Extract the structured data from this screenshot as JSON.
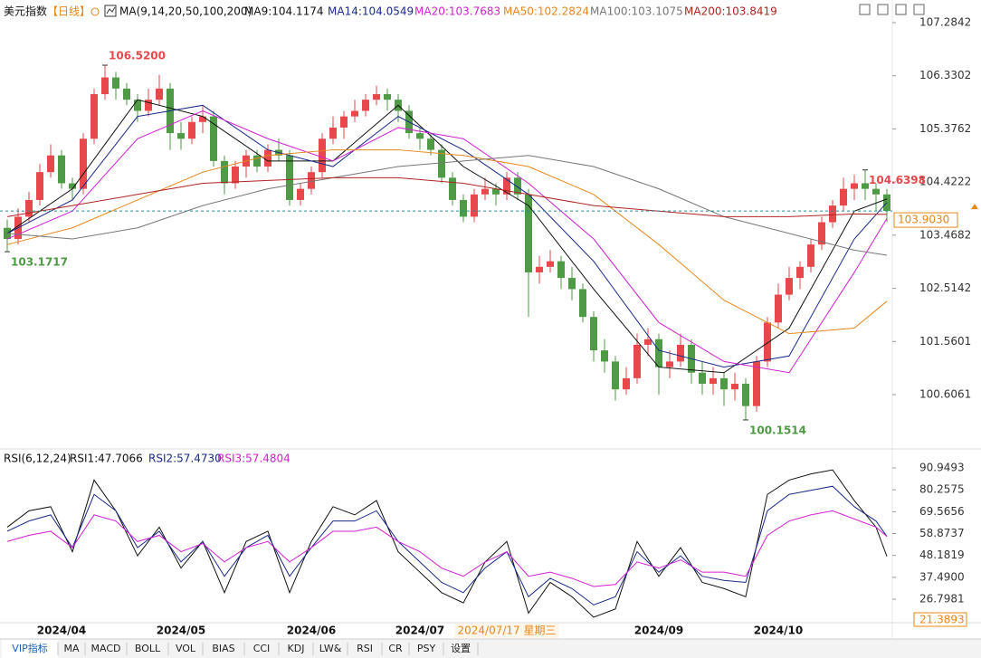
{
  "header": {
    "title": "美元指数",
    "period": "【日线】",
    "indicator": "MA(9,14,20,50,100,200)"
  },
  "chart_data": [
    {
      "type": "candlestick",
      "up_color": "#e8474b",
      "down_color": "#4e9a45",
      "ylim": [
        99.647,
        107.609
      ],
      "yticks": [
        107.2842,
        106.3302,
        105.3762,
        104.4222,
        103.4682,
        102.5142,
        101.5601,
        100.6061
      ],
      "candles": [
        [
          103.6,
          103.75,
          103.17,
          103.4
        ],
        [
          103.4,
          103.95,
          103.3,
          103.8
        ],
        [
          103.8,
          104.25,
          103.7,
          104.1
        ],
        [
          104.1,
          104.75,
          104.0,
          104.6
        ],
        [
          104.6,
          105.1,
          104.5,
          104.9
        ],
        [
          104.9,
          105.0,
          104.3,
          104.4
        ],
        [
          104.4,
          104.5,
          104.1,
          104.3
        ],
        [
          104.3,
          105.3,
          104.2,
          105.2
        ],
        [
          105.2,
          106.1,
          105.1,
          106.0
        ],
        [
          106.0,
          106.52,
          105.9,
          106.3
        ],
        [
          106.3,
          106.4,
          105.9,
          106.1
        ],
        [
          106.1,
          106.2,
          105.8,
          105.9
        ],
        [
          105.9,
          106.0,
          105.5,
          105.7
        ],
        [
          105.7,
          106.1,
          105.6,
          105.9
        ],
        [
          105.9,
          106.35,
          105.8,
          106.1
        ],
        [
          106.1,
          106.2,
          105.0,
          105.3
        ],
        [
          105.3,
          105.5,
          105.0,
          105.2
        ],
        [
          105.2,
          105.6,
          105.1,
          105.5
        ],
        [
          105.5,
          105.8,
          105.3,
          105.6
        ],
        [
          105.6,
          105.7,
          104.7,
          104.8
        ],
        [
          104.8,
          104.9,
          104.2,
          104.4
        ],
        [
          104.4,
          104.8,
          104.3,
          104.7
        ],
        [
          104.7,
          105.0,
          104.5,
          104.9
        ],
        [
          104.9,
          105.0,
          104.6,
          104.7
        ],
        [
          104.7,
          105.1,
          104.6,
          105.0
        ],
        [
          105.0,
          105.2,
          104.8,
          104.9
        ],
        [
          104.9,
          105.0,
          104.0,
          104.1
        ],
        [
          104.1,
          104.4,
          104.0,
          104.3
        ],
        [
          104.3,
          104.7,
          104.2,
          104.6
        ],
        [
          104.6,
          105.3,
          104.5,
          105.2
        ],
        [
          105.2,
          105.6,
          105.1,
          105.4
        ],
        [
          105.4,
          105.7,
          105.2,
          105.6
        ],
        [
          105.6,
          105.9,
          105.5,
          105.7
        ],
        [
          105.7,
          106.0,
          105.6,
          105.9
        ],
        [
          105.9,
          106.15,
          105.8,
          106.0
        ],
        [
          106.0,
          106.1,
          105.7,
          105.9
        ],
        [
          105.9,
          106.0,
          105.5,
          105.7
        ],
        [
          105.7,
          105.8,
          105.2,
          105.3
        ],
        [
          105.3,
          105.4,
          105.0,
          105.2
        ],
        [
          105.2,
          105.3,
          104.9,
          105.0
        ],
        [
          105.0,
          105.1,
          104.4,
          104.5
        ],
        [
          104.5,
          104.6,
          104.0,
          104.1
        ],
        [
          104.1,
          104.2,
          103.7,
          103.8
        ],
        [
          103.8,
          104.3,
          103.7,
          104.2
        ],
        [
          104.2,
          104.5,
          104.1,
          104.3
        ],
        [
          104.3,
          104.4,
          104.0,
          104.2
        ],
        [
          104.2,
          104.6,
          104.1,
          104.5
        ],
        [
          104.5,
          104.6,
          104.1,
          104.2
        ],
        [
          104.2,
          104.3,
          102.0,
          102.8
        ],
        [
          102.8,
          103.1,
          102.6,
          102.9
        ],
        [
          102.9,
          103.2,
          102.8,
          103.0
        ],
        [
          103.0,
          103.1,
          102.5,
          102.7
        ],
        [
          102.7,
          102.9,
          102.3,
          102.5
        ],
        [
          102.5,
          102.6,
          101.9,
          102.0
        ],
        [
          102.0,
          102.1,
          101.2,
          101.4
        ],
        [
          101.4,
          101.6,
          101.0,
          101.2
        ],
        [
          101.2,
          101.3,
          100.5,
          100.7
        ],
        [
          100.7,
          101.1,
          100.6,
          100.9
        ],
        [
          100.9,
          101.7,
          100.8,
          101.5
        ],
        [
          101.5,
          101.8,
          101.3,
          101.6
        ],
        [
          101.6,
          101.7,
          100.6,
          101.1
        ],
        [
          101.1,
          101.4,
          100.9,
          101.2
        ],
        [
          101.2,
          101.7,
          101.1,
          101.5
        ],
        [
          101.5,
          101.6,
          100.8,
          101.0
        ],
        [
          101.0,
          101.2,
          100.6,
          100.8
        ],
        [
          100.8,
          101.1,
          100.6,
          100.9
        ],
        [
          100.9,
          101.0,
          100.4,
          100.7
        ],
        [
          100.7,
          101.0,
          100.5,
          100.8
        ],
        [
          100.8,
          100.9,
          100.15,
          100.4
        ],
        [
          100.4,
          101.3,
          100.3,
          101.2
        ],
        [
          101.2,
          102.0,
          101.1,
          101.9
        ],
        [
          101.9,
          102.6,
          101.8,
          102.4
        ],
        [
          102.4,
          102.9,
          102.3,
          102.7
        ],
        [
          102.7,
          103.0,
          102.5,
          102.9
        ],
        [
          102.9,
          103.4,
          102.8,
          103.3
        ],
        [
          103.3,
          103.8,
          103.2,
          103.7
        ],
        [
          103.7,
          104.1,
          103.6,
          104.0
        ],
        [
          104.0,
          104.5,
          103.9,
          104.3
        ],
        [
          104.3,
          104.55,
          104.1,
          104.4
        ],
        [
          104.4,
          104.64,
          104.1,
          104.3
        ],
        [
          104.3,
          104.4,
          103.9,
          104.2
        ],
        [
          104.2,
          104.3,
          103.7,
          103.903
        ]
      ],
      "last_price_label": "103.9030",
      "annotations": [
        {
          "index": 9,
          "value": 106.52,
          "label": "106.5200",
          "color": "#e8474b"
        },
        {
          "index": 0,
          "value": 103.1717,
          "label": "103.1717",
          "color": "#4e9a45"
        },
        {
          "index": 68,
          "value": 100.1514,
          "label": "100.1514",
          "color": "#4e9a45"
        },
        {
          "index": 79,
          "value": 104.6398,
          "label": "104.6398",
          "color": "#e8474b"
        }
      ],
      "ma_x": [
        0,
        6,
        12,
        18,
        24,
        30,
        36,
        42,
        48,
        54,
        60,
        66,
        72,
        78,
        81
      ],
      "series": [
        {
          "name": "MA9:104.1174",
          "color": "#111111",
          "values": [
            103.5,
            104.3,
            105.9,
            105.6,
            104.8,
            104.8,
            105.8,
            104.7,
            104.0,
            102.5,
            101.1,
            101.0,
            101.8,
            103.9,
            104.1174
          ]
        },
        {
          "name": "MA14:104.0549",
          "color": "#1a2a8a",
          "values": [
            103.5,
            104.1,
            105.6,
            105.8,
            105.0,
            104.7,
            105.6,
            105.0,
            104.2,
            103.0,
            101.4,
            101.1,
            101.3,
            103.4,
            104.0549
          ]
        },
        {
          "name": "MA20:103.7683",
          "color": "#d21fd2",
          "values": [
            103.4,
            103.9,
            105.2,
            105.7,
            105.2,
            104.8,
            105.4,
            105.2,
            104.4,
            103.4,
            101.9,
            101.2,
            101.0,
            102.8,
            103.7683
          ]
        },
        {
          "name": "MA50:102.2824",
          "color": "#e8861a",
          "values": [
            103.3,
            103.6,
            104.1,
            104.6,
            104.9,
            105.0,
            105.0,
            104.9,
            104.7,
            104.2,
            103.3,
            102.3,
            101.7,
            101.8,
            102.2824
          ]
        },
        {
          "name": "MA100:103.1075",
          "color": "#777777",
          "values": [
            103.5,
            103.4,
            103.6,
            104.0,
            104.3,
            104.5,
            104.7,
            104.8,
            104.9,
            104.7,
            104.3,
            103.8,
            103.5,
            103.2,
            103.1075
          ]
        },
        {
          "name": "MA200:103.8419",
          "color": "#b22222",
          "values": [
            103.8,
            104.0,
            104.2,
            104.4,
            104.45,
            104.5,
            104.5,
            104.4,
            104.2,
            104.0,
            103.9,
            103.8,
            103.8,
            103.85,
            103.8419
          ]
        }
      ]
    },
    {
      "type": "line",
      "title": "RSI(6,12,24)",
      "ylim": [
        14.43,
        98.46
      ],
      "yticks": [
        90.9493,
        80.2575,
        69.5656,
        58.8737,
        48.1819,
        {
          "value": 37.49,
          "label": "37.4900"
        },
        26.7981
      ],
      "low_label": 21.3893,
      "x": [
        0,
        2,
        4,
        6,
        8,
        10,
        12,
        14,
        16,
        18,
        20,
        22,
        24,
        26,
        28,
        30,
        32,
        34,
        36,
        38,
        40,
        42,
        44,
        46,
        48,
        50,
        52,
        54,
        56,
        58,
        60,
        62,
        64,
        66,
        68,
        70,
        72,
        74,
        76,
        78,
        80,
        81
      ],
      "series": [
        {
          "name": "RSI1:47.7066",
          "color": "#111111",
          "values": [
            62,
            70,
            72,
            50,
            85,
            70,
            48,
            62,
            42,
            55,
            30,
            55,
            60,
            30,
            55,
            72,
            68,
            75,
            50,
            40,
            30,
            25,
            45,
            55,
            20,
            35,
            28,
            18,
            22,
            55,
            38,
            52,
            35,
            32,
            28,
            78,
            85,
            88,
            90,
            75,
            62,
            47.7066
          ]
        },
        {
          "name": "RSI2:57.4730",
          "color": "#1a2a8a",
          "values": [
            60,
            65,
            68,
            52,
            78,
            70,
            52,
            60,
            45,
            55,
            38,
            52,
            58,
            38,
            52,
            65,
            65,
            70,
            55,
            45,
            35,
            30,
            42,
            50,
            28,
            37,
            32,
            24,
            28,
            50,
            40,
            48,
            38,
            36,
            35,
            70,
            78,
            80,
            82,
            72,
            65,
            57.473
          ]
        },
        {
          "name": "RSI3:57.4804",
          "color": "#d21fd2",
          "values": [
            55,
            58,
            60,
            52,
            68,
            65,
            55,
            58,
            50,
            54,
            45,
            52,
            55,
            45,
            52,
            60,
            60,
            62,
            55,
            50,
            42,
            38,
            45,
            50,
            38,
            40,
            37,
            33,
            34,
            45,
            42,
            46,
            40,
            40,
            38,
            58,
            65,
            68,
            70,
            66,
            62,
            57.4804
          ]
        }
      ]
    }
  ],
  "x_labels": [
    {
      "index": 5,
      "label": "2024/04"
    },
    {
      "index": 16,
      "label": "2024/05"
    },
    {
      "index": 28,
      "label": "2024/06"
    },
    {
      "index": 38,
      "label": "2024/07"
    },
    {
      "index": 60,
      "label": "2024/09"
    },
    {
      "index": 71,
      "label": "2024/10"
    }
  ],
  "cursor_label": {
    "index": 46,
    "label": "2024/07/17 星期三"
  },
  "toolbar": [
    "VIP指标",
    "MA",
    "MACD",
    "BOLL",
    "VOL",
    "BIAS",
    "CCI",
    "KDJ",
    "LW&",
    "RSI",
    "CR",
    "PSY",
    "设置"
  ]
}
